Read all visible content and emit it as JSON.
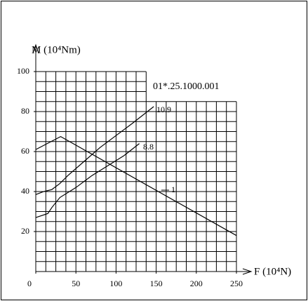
{
  "chart_data": {
    "type": "line",
    "code": "01*.25.1000.001",
    "xlabel": "F (10⁴N)",
    "ylabel": "M (10⁴Nm)",
    "xlim": [
      0,
      250
    ],
    "xticks": [
      0,
      50,
      100,
      150,
      200,
      250
    ],
    "ylim": [
      0,
      100
    ],
    "yticks": [
      20,
      40,
      60,
      80,
      100
    ],
    "grid": true,
    "series": [
      {
        "name": "10.9",
        "color": "#000000",
        "x": [
          0,
          10,
          20,
          30,
          40,
          60,
          80,
          100,
          120,
          147
        ],
        "values": [
          38.5,
          40,
          41,
          44,
          48,
          55,
          62,
          68,
          74,
          82.5
        ]
      },
      {
        "name": "8.8",
        "color": "#000000",
        "x": [
          0,
          15,
          20,
          30,
          50,
          70,
          90,
          110,
          129
        ],
        "values": [
          27,
          29,
          32,
          37,
          42,
          48,
          53,
          58,
          64
        ]
      },
      {
        "name": "1",
        "color": "#000000",
        "x": [
          0,
          31,
          250
        ],
        "values": [
          61,
          67.5,
          18
        ]
      }
    ]
  }
}
